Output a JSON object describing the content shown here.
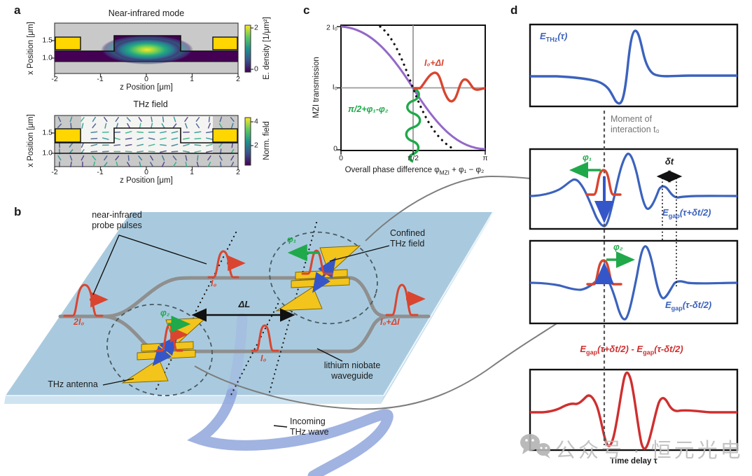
{
  "panels": {
    "a": {
      "label": "a",
      "top": {
        "title": "Near-infrared mode",
        "ylabel": "x Position [μm]",
        "xlabel": "z Position [μm]",
        "yticks": [
          "1.5",
          "1.0"
        ],
        "xticks": [
          "-2",
          "-1",
          "0",
          "1",
          "2"
        ],
        "cbar": {
          "ticks": [
            "2",
            "0"
          ],
          "label": "E. density [1/μm²]"
        }
      },
      "bottom": {
        "title": "THz field",
        "ylabel": "x Position [μm]",
        "xlabel": "z Position [μm]",
        "yticks": [
          "1.5",
          "1.0"
        ],
        "xticks": [
          "-2",
          "-1",
          "0",
          "1",
          "2"
        ],
        "cbar": {
          "ticks": [
            "4",
            "2"
          ],
          "label": "Norm. field"
        }
      }
    },
    "b": {
      "label": "b",
      "annotations": {
        "probe1": "near-infrared",
        "probe2": "probe pulses",
        "confined1": "Confined",
        "confined2": "THz field",
        "waveguide1": "lithium niobate",
        "waveguide2": "waveguide",
        "antenna": "THz antenna",
        "incoming1": "Incoming",
        "incoming2": "THz wave"
      },
      "values": {
        "input": "2I₀",
        "i0_upper": "I₀",
        "i0_lower": "I₀",
        "output": "I₀+ΔI",
        "delta_l": "ΔL",
        "phi1": "φ₁",
        "phi2": "φ₂"
      }
    },
    "c": {
      "label": "c",
      "ylabel": "MZI transmission",
      "yticks": [
        "2 I₀",
        "I₀",
        "0"
      ],
      "xticks": [
        "0",
        "π/2",
        "π"
      ],
      "xlabel": {
        "pre": "Overall phase difference φ",
        "sub": "MZI",
        "post": " + φ₁ − φ₂"
      },
      "annotations": {
        "red": "I₀+ΔI",
        "green": "π/2+φ₁-φ₂"
      }
    },
    "d": {
      "label": "d",
      "traces": {
        "ethz": {
          "base": "E",
          "sub": "THz",
          "args": "(τ)"
        },
        "egap_plus": {
          "base": "E",
          "sub": "gap",
          "args": "(τ+δt/2)"
        },
        "egap_minus": {
          "base": "E",
          "sub": "gap",
          "args": "(τ-δt/2)"
        },
        "diff": {
          "base1": "E",
          "sub1": "gap",
          "args1": "(τ+δt/2) - ",
          "base2": "E",
          "sub2": "gap",
          "args2": "(τ-δt/2)"
        }
      },
      "annotations": {
        "moment1": "Moment of",
        "moment2": "interaction t₀",
        "delta_t": "δt",
        "phi1": "φ₁",
        "phi2": "φ₂",
        "xlabel": "Time delay τ"
      }
    }
  },
  "watermark": {
    "text": "公众号 · 恒元光电",
    "icon": "wechat-icon"
  },
  "colors": {
    "red": "#d9452f",
    "green": "#1fa94a",
    "trace_blue": "#3b62bd",
    "trace_red": "#cf2f2f",
    "purple": "#9468c8",
    "gold": "#f2c41c",
    "chip_blue": "#a9cade",
    "waveguide_gray": "#8f8f8f",
    "thz_wave_blue": "#8fa6dc",
    "watermark_gray": "#bdbdbd",
    "slab_purple": "#440154"
  }
}
